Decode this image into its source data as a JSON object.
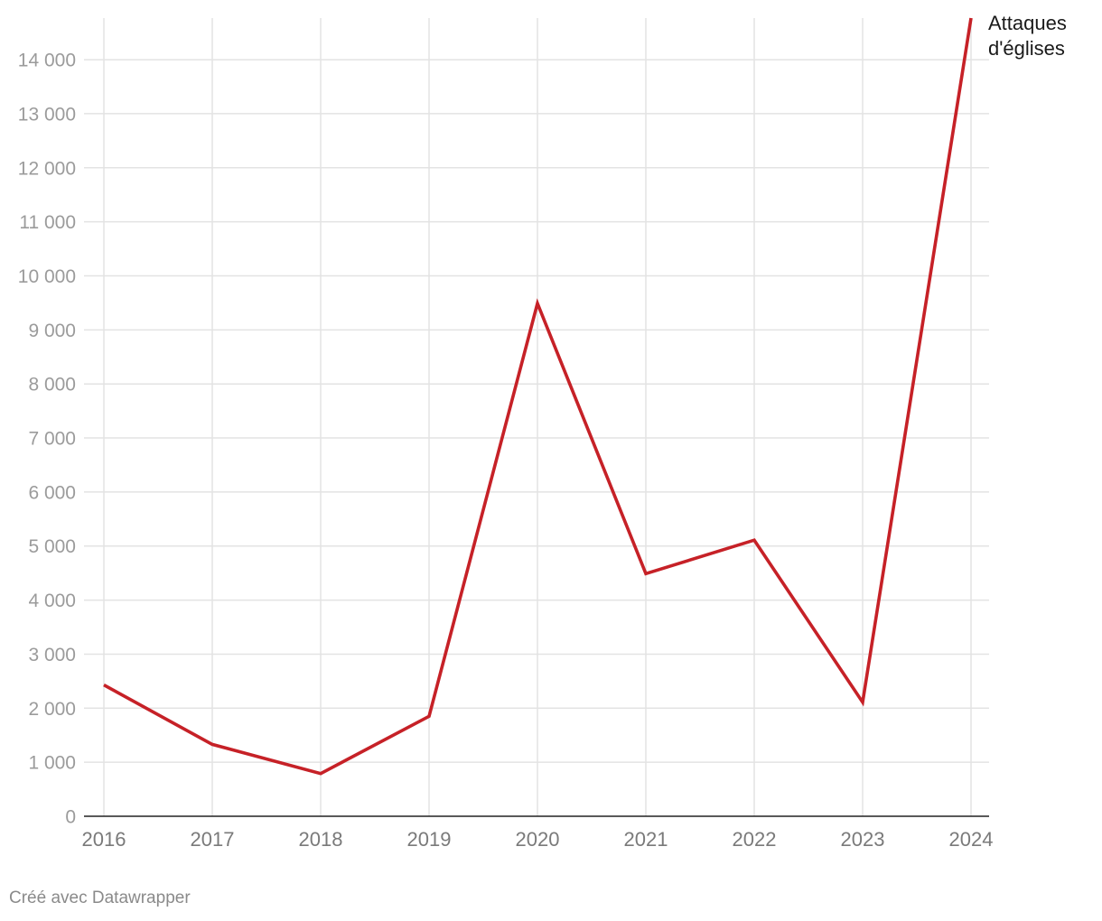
{
  "chart_data": {
    "type": "line",
    "x": [
      "2016",
      "2017",
      "2018",
      "2019",
      "2020",
      "2021",
      "2022",
      "2023",
      "2024"
    ],
    "series": [
      {
        "name": "Attaques d'églises",
        "values": [
          2430,
          1330,
          790,
          1850,
          9490,
          4490,
          5110,
          2110,
          14770
        ],
        "color": "#c62127"
      }
    ],
    "ylim": [
      0,
      14770
    ],
    "yticks": [
      0,
      1000,
      2000,
      3000,
      4000,
      5000,
      6000,
      7000,
      8000,
      9000,
      10000,
      11000,
      12000,
      13000,
      14000
    ],
    "ytick_labels": [
      "0",
      "1 000",
      "2 000",
      "3 000",
      "4 000",
      "5 000",
      "6 000",
      "7 000",
      "8 000",
      "9 000",
      "10 000",
      "11 000",
      "12 000",
      "13 000",
      "14 000"
    ],
    "series_label_lines": [
      "Attaques",
      "d'églises"
    ],
    "grid": true,
    "title": "",
    "xlabel": "",
    "ylabel": ""
  },
  "footer": {
    "credit": "Créé avec Datawrapper"
  }
}
